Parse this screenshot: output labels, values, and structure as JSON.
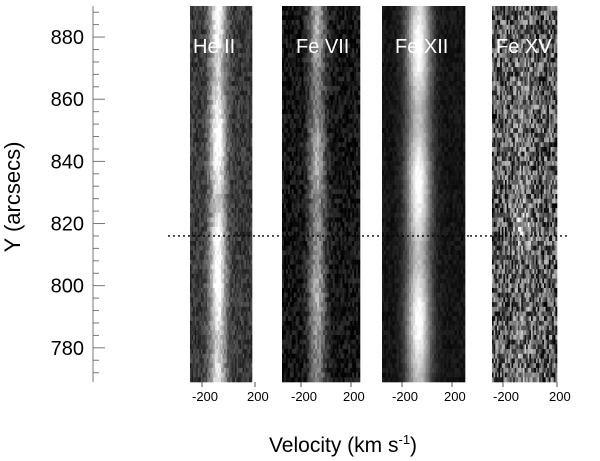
{
  "chart_data": {
    "type": "heatmap",
    "title": "",
    "ylabel": "Y (arcsecs)",
    "xlabel": "Velocity (km s",
    "xlabel_superscript": "-1",
    "xlabel_close": ")",
    "ylim": [
      769,
      890
    ],
    "y_ticks": [
      780,
      800,
      820,
      840,
      860,
      880
    ],
    "y_tick_labels": [
      "780",
      "800",
      "820",
      "840",
      "860",
      "880"
    ],
    "reference_y": 816,
    "reference_line_style": "dotted",
    "panels": [
      {
        "name": "He II",
        "xlim": [
          -300,
          300
        ],
        "x_ticks": [
          -200,
          200
        ],
        "x_tick_labels": [
          "-200",
          "200"
        ],
        "line_center": -30,
        "line_width": 80,
        "line_peak": 0.85,
        "background": 0.22,
        "noise": 0.12,
        "bright_spot_y": 817,
        "bright_spot_peak": 1.0
      },
      {
        "name": "Fe VII",
        "xlim": [
          -300,
          300
        ],
        "x_ticks": [
          -200,
          200
        ],
        "x_tick_labels": [
          "-200",
          "200"
        ],
        "line_center": -30,
        "line_width": 65,
        "line_peak": 0.6,
        "background": 0.08,
        "noise": 0.12,
        "bright_spot_y": 817,
        "bright_spot_peak": 0.65
      },
      {
        "name": "Fe XII",
        "xlim": [
          -300,
          300
        ],
        "x_ticks": [
          -200,
          200
        ],
        "x_tick_labels": [
          "-200",
          "200"
        ],
        "line_center": -35,
        "line_width": 85,
        "line_peak": 0.95,
        "background": 0.08,
        "noise": 0.05,
        "bright_spot_y": 818,
        "bright_spot_peak": 1.0
      },
      {
        "name": "Fe XV",
        "xlim": [
          -300,
          300
        ],
        "x_ticks": [
          -200,
          200
        ],
        "x_tick_labels": [
          "-200",
          "200"
        ],
        "line_center": -20,
        "line_width": 80,
        "line_peak": 0.12,
        "background": 0.35,
        "noise": 0.38,
        "bright_spot_y": 818,
        "bright_spot_peak": 0.45
      }
    ]
  }
}
